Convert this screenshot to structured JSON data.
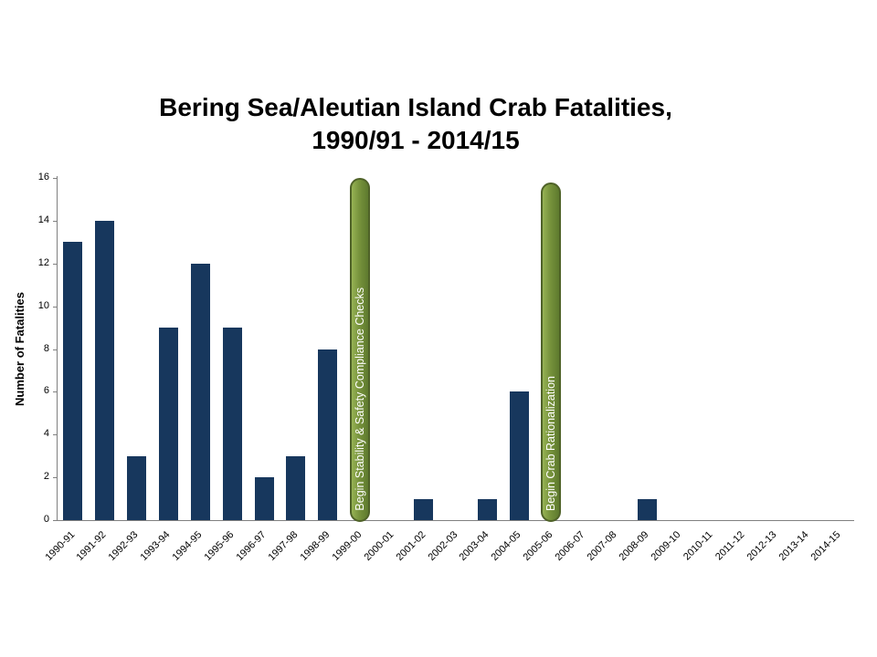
{
  "chart_data": {
    "type": "bar",
    "title": "Bering Sea/Aleutian Island Crab Fatalities, 1990/91 - 2014/15",
    "title_line1": "Bering Sea/Aleutian Island Crab Fatalities,",
    "title_line2": "1990/91 - 2014/15",
    "xlabel": "",
    "ylabel": "Number of Fatalities",
    "ylim": [
      0,
      16
    ],
    "ytick_step": 2,
    "grid": false,
    "legend": "none",
    "categories": [
      "1990-91",
      "1991-92",
      "1992-93",
      "1993-94",
      "1994-95",
      "1995-96",
      "1996-97",
      "1997-98",
      "1998-99",
      "1999-00",
      "2000-01",
      "2001-02",
      "2002-03",
      "2003-04",
      "2004-05",
      "2005-06",
      "2006-07",
      "2007-08",
      "2008-09",
      "2009-10",
      "2010-11",
      "2011-12",
      "2012-13",
      "2013-14",
      "2014-15"
    ],
    "values": [
      13,
      14,
      3,
      9,
      12,
      9,
      2,
      3,
      8,
      0,
      0,
      1,
      0,
      1,
      6,
      0,
      0,
      0,
      1,
      0,
      0,
      0,
      0,
      0,
      0
    ],
    "bar_color": "#17375D",
    "axis_color": "#808080",
    "annotations": [
      {
        "category": "1999-00",
        "label": "Begin Stability & Safety Compliance Checks",
        "top_value": 16,
        "fill": "#77933C",
        "border": "#4F6228",
        "text_color": "#FFFFFF"
      },
      {
        "category": "2005-06",
        "label": "Begin Crab Rationalization",
        "top_value": 15.8,
        "fill": "#77933C",
        "border": "#4F6228",
        "text_color": "#FFFFFF"
      }
    ]
  }
}
